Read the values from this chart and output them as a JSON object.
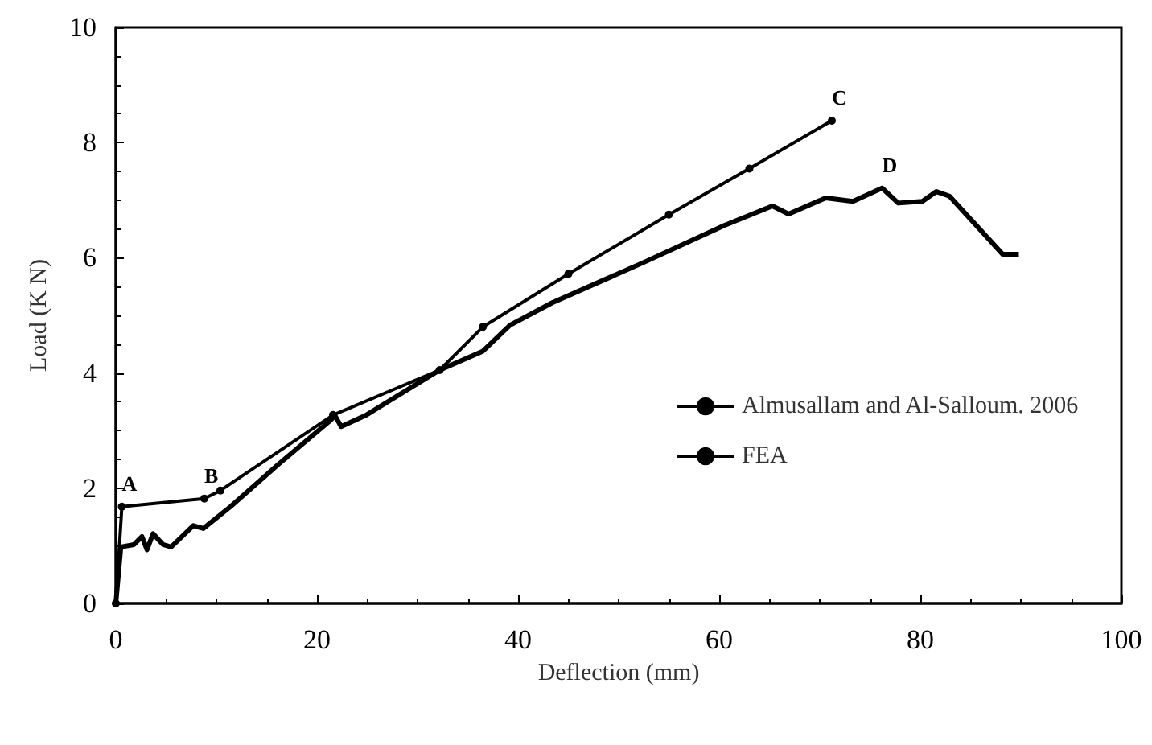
{
  "chart_data": {
    "type": "line",
    "xlabel": "Deflection (mm)",
    "ylabel": "Load (K N)",
    "xlim": [
      0,
      100
    ],
    "xticks": [
      0,
      20,
      40,
      60,
      80,
      100
    ],
    "ylim": [
      0,
      10
    ],
    "yticks": [
      0,
      2,
      4,
      6,
      8,
      10
    ],
    "grid": false,
    "legend": "right",
    "line_style": "solid",
    "series": [
      {
        "name": "Almusallam and Al-Salloum. 2006",
        "color": "#000000",
        "marker": "none",
        "x": [
          0,
          0.5,
          1.8,
          2.6,
          3.1,
          3.7,
          4.7,
          5.5,
          7.7,
          8.7,
          11.4,
          16.2,
          21.3,
          21.8,
          22.4,
          24.8,
          32.2,
          36.5,
          39.2,
          43.4,
          52.5,
          60.5,
          65.3,
          66.9,
          70.6,
          73.3,
          76.2,
          77.8,
          80.2,
          81.6,
          82.9,
          88.2,
          89.8
        ],
        "values": [
          0,
          0.98,
          1.02,
          1.16,
          0.93,
          1.21,
          1.02,
          0.98,
          1.35,
          1.3,
          1.68,
          2.42,
          3.17,
          3.26,
          3.07,
          3.26,
          4.05,
          4.38,
          4.83,
          5.22,
          5.92,
          6.56,
          6.9,
          6.76,
          7.04,
          6.98,
          7.21,
          6.95,
          6.98,
          7.15,
          7.07,
          6.06,
          6.06
        ]
      },
      {
        "name": "FEA",
        "color": "#000000",
        "marker": "circle",
        "x": [
          0,
          0.6,
          8.8,
          10.4,
          21.6,
          32.2,
          36.5,
          45,
          55,
          63,
          71.2
        ],
        "values": [
          0,
          1.68,
          1.82,
          1.96,
          3.27,
          4.05,
          4.8,
          5.72,
          6.75,
          7.55,
          8.38
        ]
      }
    ],
    "annotations": [
      {
        "text": "A",
        "x": 0.6,
        "y": 1.68
      },
      {
        "text": "B",
        "x": 8.8,
        "y": 1.82
      },
      {
        "text": "C",
        "x": 71.2,
        "y": 8.38
      },
      {
        "text": "D",
        "x": 76.2,
        "y": 7.21
      }
    ]
  }
}
